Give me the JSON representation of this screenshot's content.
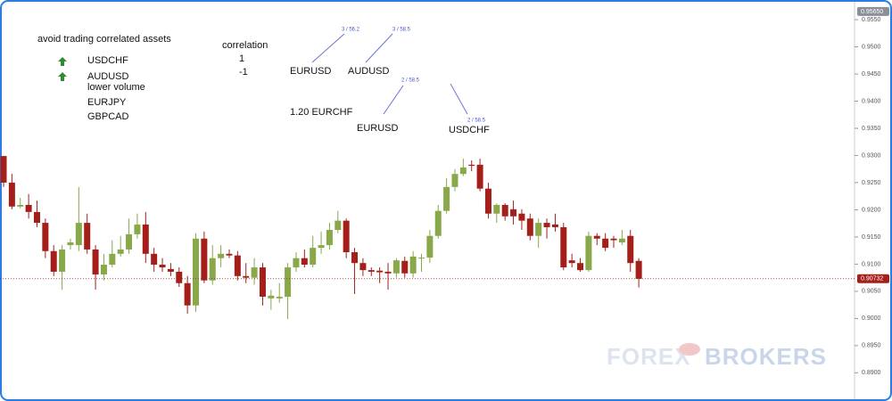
{
  "annotations": {
    "title": "avoid trading correlated assets",
    "list": [
      "USDCHF",
      "AUDUSD",
      "lower volume",
      "EURJPY",
      "GBPCAD"
    ],
    "correlation_header": "correlation",
    "correlation_values": [
      "1",
      "-1"
    ],
    "pairs": [
      "EURUSD",
      "AUDUSD",
      "1.20 EURCHF",
      "EURUSD",
      "USDCHF"
    ],
    "small_labels": [
      "3 / 56.2",
      "3 / 58.5",
      "2 / 58.5",
      "2 / 58.5"
    ]
  },
  "watermark": {
    "left": "FOREX",
    "right": "BROKERS"
  },
  "chart_data": {
    "type": "candlestick",
    "up_color": "#88a84a",
    "down_color": "#a51f1a",
    "open": [
      0.9299,
      0.925,
      0.9206,
      0.9209,
      0.9196,
      0.9176,
      0.9124,
      0.9086,
      0.9135,
      0.9135,
      0.9176,
      0.9127,
      0.9081,
      0.9099,
      0.9119,
      0.9127,
      0.9155,
      0.9173,
      0.9119,
      0.9099,
      0.9091,
      0.9086,
      0.9065,
      0.9024,
      0.9147,
      0.907,
      0.9111,
      0.9119,
      0.9116,
      0.9078,
      0.9075,
      0.9094,
      0.9037,
      0.9037,
      0.904,
      0.9094,
      0.9111,
      0.9099,
      0.913,
      0.9135,
      0.9163,
      0.918,
      0.9122,
      0.9102,
      0.9089,
      0.9088,
      0.9086,
      0.9083,
      0.9106,
      0.9083,
      0.9111,
      0.9112,
      0.9152,
      0.9198,
      0.9242,
      0.9266,
      0.9283,
      0.9283,
      0.9239,
      0.9193,
      0.9209,
      0.9201,
      0.9193,
      0.9184,
      0.9152,
      0.9176,
      0.9173,
      0.9168,
      0.9107,
      0.9102,
      0.9089,
      0.9152,
      0.9147,
      0.9147,
      0.914,
      0.9152,
      0.9106
    ],
    "high": [
      0.9299,
      0.9266,
      0.9222,
      0.9229,
      0.9217,
      0.9184,
      0.9135,
      0.9135,
      0.9147,
      0.9242,
      0.9193,
      0.9135,
      0.9119,
      0.9144,
      0.9152,
      0.9184,
      0.9193,
      0.9196,
      0.913,
      0.9111,
      0.9102,
      0.9094,
      0.9078,
      0.9157,
      0.916,
      0.9135,
      0.9135,
      0.9127,
      0.9124,
      0.9102,
      0.9111,
      0.9102,
      0.9053,
      0.9065,
      0.9102,
      0.9122,
      0.9127,
      0.9152,
      0.916,
      0.9176,
      0.9198,
      0.9184,
      0.913,
      0.9111,
      0.9094,
      0.9094,
      0.9102,
      0.9111,
      0.9114,
      0.9124,
      0.9119,
      0.9163,
      0.9209,
      0.9258,
      0.9275,
      0.9294,
      0.9291,
      0.9294,
      0.925,
      0.9212,
      0.9212,
      0.9217,
      0.9201,
      0.9193,
      0.9184,
      0.9184,
      0.9193,
      0.9176,
      0.9119,
      0.9111,
      0.916,
      0.9157,
      0.9157,
      0.9152,
      0.9163,
      0.9163,
      0.9111
    ],
    "low": [
      0.9242,
      0.9201,
      0.9203,
      0.9184,
      0.9168,
      0.9111,
      0.9078,
      0.9053,
      0.9127,
      0.9124,
      0.9119,
      0.9053,
      0.907,
      0.9094,
      0.9114,
      0.9119,
      0.9147,
      0.9102,
      0.9086,
      0.9086,
      0.9078,
      0.9058,
      0.9009,
      0.9012,
      0.9065,
      0.9062,
      0.9094,
      0.9111,
      0.907,
      0.9065,
      0.9062,
      0.9024,
      0.9016,
      0.9029,
      0.8999,
      0.9086,
      0.9094,
      0.9094,
      0.9119,
      0.9127,
      0.9157,
      0.9111,
      0.9045,
      0.9078,
      0.9078,
      0.9065,
      0.9053,
      0.9075,
      0.9075,
      0.9075,
      0.9086,
      0.9102,
      0.9147,
      0.9193,
      0.9234,
      0.9262,
      0.9271,
      0.9234,
      0.9184,
      0.9176,
      0.918,
      0.9173,
      0.9163,
      0.9144,
      0.913,
      0.9147,
      0.916,
      0.9089,
      0.9094,
      0.9086,
      0.9086,
      0.9135,
      0.9124,
      0.913,
      0.9135,
      0.9086,
      0.9057
    ],
    "close": [
      0.925,
      0.9206,
      0.9209,
      0.9196,
      0.9176,
      0.9124,
      0.9086,
      0.9127,
      0.914,
      0.9176,
      0.9127,
      0.9081,
      0.9099,
      0.9119,
      0.9127,
      0.9155,
      0.9173,
      0.9119,
      0.9099,
      0.9094,
      0.9086,
      0.9065,
      0.9024,
      0.9147,
      0.907,
      0.9111,
      0.9119,
      0.9116,
      0.9078,
      0.9075,
      0.9094,
      0.904,
      0.9042,
      0.904,
      0.9094,
      0.9111,
      0.9099,
      0.913,
      0.9135,
      0.9163,
      0.918,
      0.9122,
      0.9102,
      0.9089,
      0.9086,
      0.9085,
      0.9083,
      0.9107,
      0.9083,
      0.9114,
      0.9112,
      0.9152,
      0.9198,
      0.9242,
      0.9266,
      0.9278,
      0.9281,
      0.9239,
      0.9193,
      0.9209,
      0.9188,
      0.9188,
      0.918,
      0.9152,
      0.9176,
      0.9168,
      0.9168,
      0.9094,
      0.9102,
      0.9089,
      0.9152,
      0.9147,
      0.913,
      0.9144,
      0.9147,
      0.9102,
      0.9073
    ],
    "ylim": [
      0.8853,
      0.9578
    ],
    "yticks": [
      {
        "value": 0.89,
        "label": "0.8900"
      },
      {
        "value": 0.895,
        "label": "0.8950"
      },
      {
        "value": 0.9,
        "label": "0.9000"
      },
      {
        "value": 0.905,
        "label": "0.9050"
      },
      {
        "value": 0.91,
        "label": "0.9100"
      },
      {
        "value": 0.915,
        "label": "0.9150"
      },
      {
        "value": 0.92,
        "label": "0.9200"
      },
      {
        "value": 0.925,
        "label": "0.9250"
      },
      {
        "value": 0.93,
        "label": "0.9300"
      },
      {
        "value": 0.935,
        "label": "0.9350"
      },
      {
        "value": 0.94,
        "label": "0.9400"
      },
      {
        "value": 0.945,
        "label": "0.9450"
      },
      {
        "value": 0.95,
        "label": "0.9500"
      },
      {
        "value": 0.955,
        "label": "0.9550"
      }
    ],
    "last_price": {
      "value": 0.90732,
      "label": "0.90732",
      "color": "#a51f1a"
    },
    "top_marker": {
      "value": 0.9565,
      "label": "0.95650",
      "color": "#8a8f99"
    }
  }
}
